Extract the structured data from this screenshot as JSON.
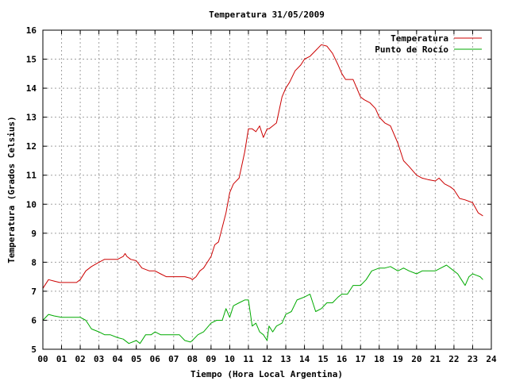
{
  "chart_data": {
    "type": "line",
    "title": "Temperatura 31/05/2009",
    "xlabel": "Tiempo (Hora Local Argentina)",
    "ylabel": "Temperatura (Grados Celsius)",
    "xlim": [
      0,
      24
    ],
    "ylim": [
      5,
      16
    ],
    "grid": true,
    "legend_position": "top-right",
    "x_ticks": [
      "00",
      "01",
      "02",
      "03",
      "04",
      "05",
      "06",
      "07",
      "08",
      "09",
      "10",
      "11",
      "12",
      "13",
      "14",
      "15",
      "16",
      "17",
      "18",
      "19",
      "20",
      "21",
      "22",
      "23",
      "24"
    ],
    "y_ticks": [
      5,
      6,
      7,
      8,
      9,
      10,
      11,
      12,
      13,
      14,
      15,
      16
    ],
    "series": [
      {
        "name": "Temperatura",
        "color": "#cc0000",
        "x": [
          0.0,
          0.3,
          0.6,
          0.9,
          1.2,
          1.5,
          1.8,
          2.0,
          2.3,
          2.6,
          3.0,
          3.3,
          3.5,
          3.8,
          4.0,
          4.3,
          4.4,
          4.5,
          4.7,
          5.0,
          5.3,
          5.7,
          6.0,
          6.3,
          6.6,
          7.0,
          7.3,
          7.6,
          7.9,
          8.0,
          8.2,
          8.4,
          8.6,
          8.8,
          9.0,
          9.2,
          9.4,
          9.6,
          9.8,
          10.0,
          10.2,
          10.5,
          10.8,
          11.0,
          11.2,
          11.4,
          11.6,
          11.8,
          12.0,
          12.1,
          12.3,
          12.5,
          12.8,
          13.0,
          13.2,
          13.5,
          13.8,
          14.0,
          14.3,
          14.6,
          14.9,
          15.2,
          15.5,
          15.8,
          16.0,
          16.2,
          16.4,
          16.6,
          16.8,
          17.0,
          17.2,
          17.5,
          17.8,
          18.0,
          18.3,
          18.6,
          19.0,
          19.3,
          19.6,
          20.0,
          20.3,
          20.6,
          21.0,
          21.2,
          21.5,
          21.8,
          22.0,
          22.3,
          22.6,
          23.0,
          23.3,
          23.55
        ],
        "values": [
          7.1,
          7.4,
          7.35,
          7.3,
          7.3,
          7.3,
          7.3,
          7.4,
          7.7,
          7.85,
          8.0,
          8.1,
          8.1,
          8.1,
          8.1,
          8.2,
          8.3,
          8.2,
          8.1,
          8.05,
          7.8,
          7.7,
          7.7,
          7.6,
          7.5,
          7.5,
          7.5,
          7.5,
          7.45,
          7.4,
          7.5,
          7.7,
          7.8,
          8.0,
          8.2,
          8.6,
          8.7,
          9.2,
          9.7,
          10.4,
          10.7,
          10.9,
          11.8,
          12.6,
          12.6,
          12.5,
          12.7,
          12.3,
          12.6,
          12.6,
          12.7,
          12.8,
          13.7,
          14.0,
          14.2,
          14.6,
          14.8,
          15.0,
          15.1,
          15.3,
          15.5,
          15.45,
          15.2,
          14.8,
          14.5,
          14.3,
          14.3,
          14.3,
          14.0,
          13.7,
          13.6,
          13.5,
          13.3,
          13.0,
          12.8,
          12.7,
          12.1,
          11.5,
          11.3,
          11.0,
          10.9,
          10.85,
          10.8,
          10.9,
          10.7,
          10.6,
          10.5,
          10.2,
          10.15,
          10.05,
          9.7,
          9.6
        ]
      },
      {
        "name": "Punto de Rocío",
        "color": "#00aa00",
        "x": [
          0.0,
          0.3,
          0.6,
          1.0,
          1.3,
          1.6,
          2.0,
          2.3,
          2.6,
          3.0,
          3.3,
          3.6,
          4.0,
          4.3,
          4.6,
          5.0,
          5.2,
          5.5,
          5.8,
          6.0,
          6.3,
          6.6,
          7.0,
          7.3,
          7.6,
          7.9,
          8.0,
          8.3,
          8.6,
          9.0,
          9.3,
          9.6,
          9.8,
          10.0,
          10.2,
          10.5,
          10.8,
          11.0,
          11.2,
          11.4,
          11.6,
          11.8,
          12.0,
          12.1,
          12.3,
          12.5,
          12.8,
          13.0,
          13.3,
          13.6,
          14.0,
          14.3,
          14.6,
          14.9,
          15.2,
          15.5,
          15.8,
          16.0,
          16.3,
          16.6,
          17.0,
          17.3,
          17.6,
          18.0,
          18.3,
          18.6,
          19.0,
          19.3,
          19.6,
          20.0,
          20.3,
          20.6,
          21.0,
          21.3,
          21.6,
          22.0,
          22.2,
          22.4,
          22.6,
          22.8,
          23.0,
          23.2,
          23.4,
          23.55
        ],
        "values": [
          6.0,
          6.2,
          6.15,
          6.1,
          6.1,
          6.1,
          6.1,
          6.0,
          5.7,
          5.6,
          5.5,
          5.5,
          5.4,
          5.35,
          5.2,
          5.3,
          5.2,
          5.5,
          5.5,
          5.6,
          5.5,
          5.5,
          5.5,
          5.5,
          5.3,
          5.25,
          5.3,
          5.5,
          5.6,
          5.9,
          6.0,
          6.0,
          6.4,
          6.1,
          6.5,
          6.6,
          6.7,
          6.7,
          5.8,
          5.9,
          5.6,
          5.5,
          5.3,
          5.8,
          5.6,
          5.8,
          5.9,
          6.2,
          6.3,
          6.7,
          6.8,
          6.9,
          6.3,
          6.4,
          6.6,
          6.6,
          6.8,
          6.9,
          6.9,
          7.2,
          7.2,
          7.4,
          7.7,
          7.8,
          7.8,
          7.85,
          7.7,
          7.8,
          7.7,
          7.6,
          7.7,
          7.7,
          7.7,
          7.8,
          7.9,
          7.7,
          7.6,
          7.4,
          7.2,
          7.5,
          7.6,
          7.55,
          7.5,
          7.4
        ]
      }
    ]
  }
}
